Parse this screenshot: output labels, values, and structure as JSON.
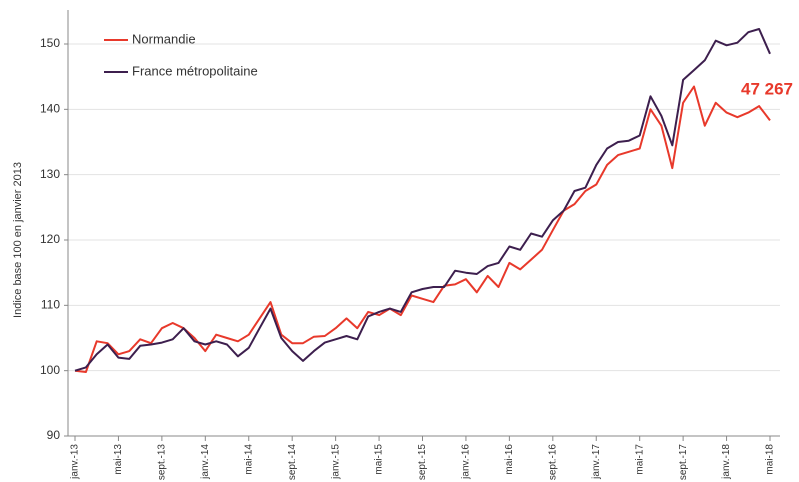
{
  "chart_data": {
    "type": "line",
    "y_label": "Indice base 100 en janvier 2013",
    "annotation": "47 267",
    "categories": [
      "janv.-13",
      null,
      null,
      null,
      "mai-13",
      null,
      null,
      null,
      "sept.-13",
      null,
      null,
      null,
      "janv.-14",
      null,
      null,
      null,
      "mai-14",
      null,
      null,
      null,
      "sept.-14",
      null,
      null,
      null,
      "janv.-15",
      null,
      null,
      null,
      "mai-15",
      null,
      null,
      null,
      "sept.-15",
      null,
      null,
      null,
      "janv.-16",
      null,
      null,
      null,
      "mai-16",
      null,
      null,
      null,
      "sept.-16",
      null,
      null,
      null,
      "janv.-17",
      null,
      null,
      null,
      "mai-17",
      null,
      null,
      null,
      "sept.-17",
      null,
      null,
      null,
      "janv.-18",
      null,
      null,
      null,
      "mai-18"
    ],
    "series": [
      {
        "name": "Normandie",
        "color": "#e8392b",
        "values": [
          100,
          99.8,
          104.5,
          104.2,
          102.5,
          103,
          104.8,
          104.2,
          106.5,
          107.3,
          106.5,
          105,
          103,
          105.5,
          105,
          104.5,
          105.5,
          108,
          110.5,
          105.5,
          104.2,
          104.2,
          105.2,
          105.3,
          106.5,
          108,
          106.5,
          109,
          108.5,
          109.5,
          108.5,
          111.5,
          111,
          110.5,
          113,
          113.2,
          114,
          112,
          114.5,
          112.8,
          116.5,
          115.5,
          117,
          118.5,
          121.5,
          124.5,
          125.5,
          127.5,
          128.5,
          131.5,
          133,
          133.5,
          134,
          140,
          137.5,
          131,
          141,
          143.5,
          137.5,
          141,
          139.5,
          138.8,
          139.5,
          140.5,
          138.3
        ]
      },
      {
        "name": "France métropolitaine",
        "color": "#3d1f4e",
        "values": [
          100,
          100.5,
          102.5,
          104,
          102,
          101.8,
          103.8,
          104,
          104.3,
          104.8,
          106.5,
          104.5,
          104,
          104.5,
          104,
          102.2,
          103.5,
          106.5,
          109.5,
          105,
          103,
          101.5,
          103,
          104.3,
          104.8,
          105.3,
          104.8,
          108.3,
          109,
          109.5,
          109,
          112,
          112.5,
          112.8,
          112.8,
          115.3,
          115,
          114.8,
          116,
          116.5,
          119,
          118.5,
          121,
          120.5,
          123,
          124.5,
          127.5,
          128,
          131.5,
          134,
          135,
          135.2,
          136,
          142,
          139,
          134.5,
          144.5,
          146,
          147.5,
          150.5,
          149.8,
          150.2,
          151.8,
          152.3,
          148.5
        ]
      }
    ],
    "ylim": [
      90,
      150
    ],
    "yticks": [
      90,
      100,
      110,
      120,
      130,
      140,
      150
    ],
    "grid": true
  }
}
